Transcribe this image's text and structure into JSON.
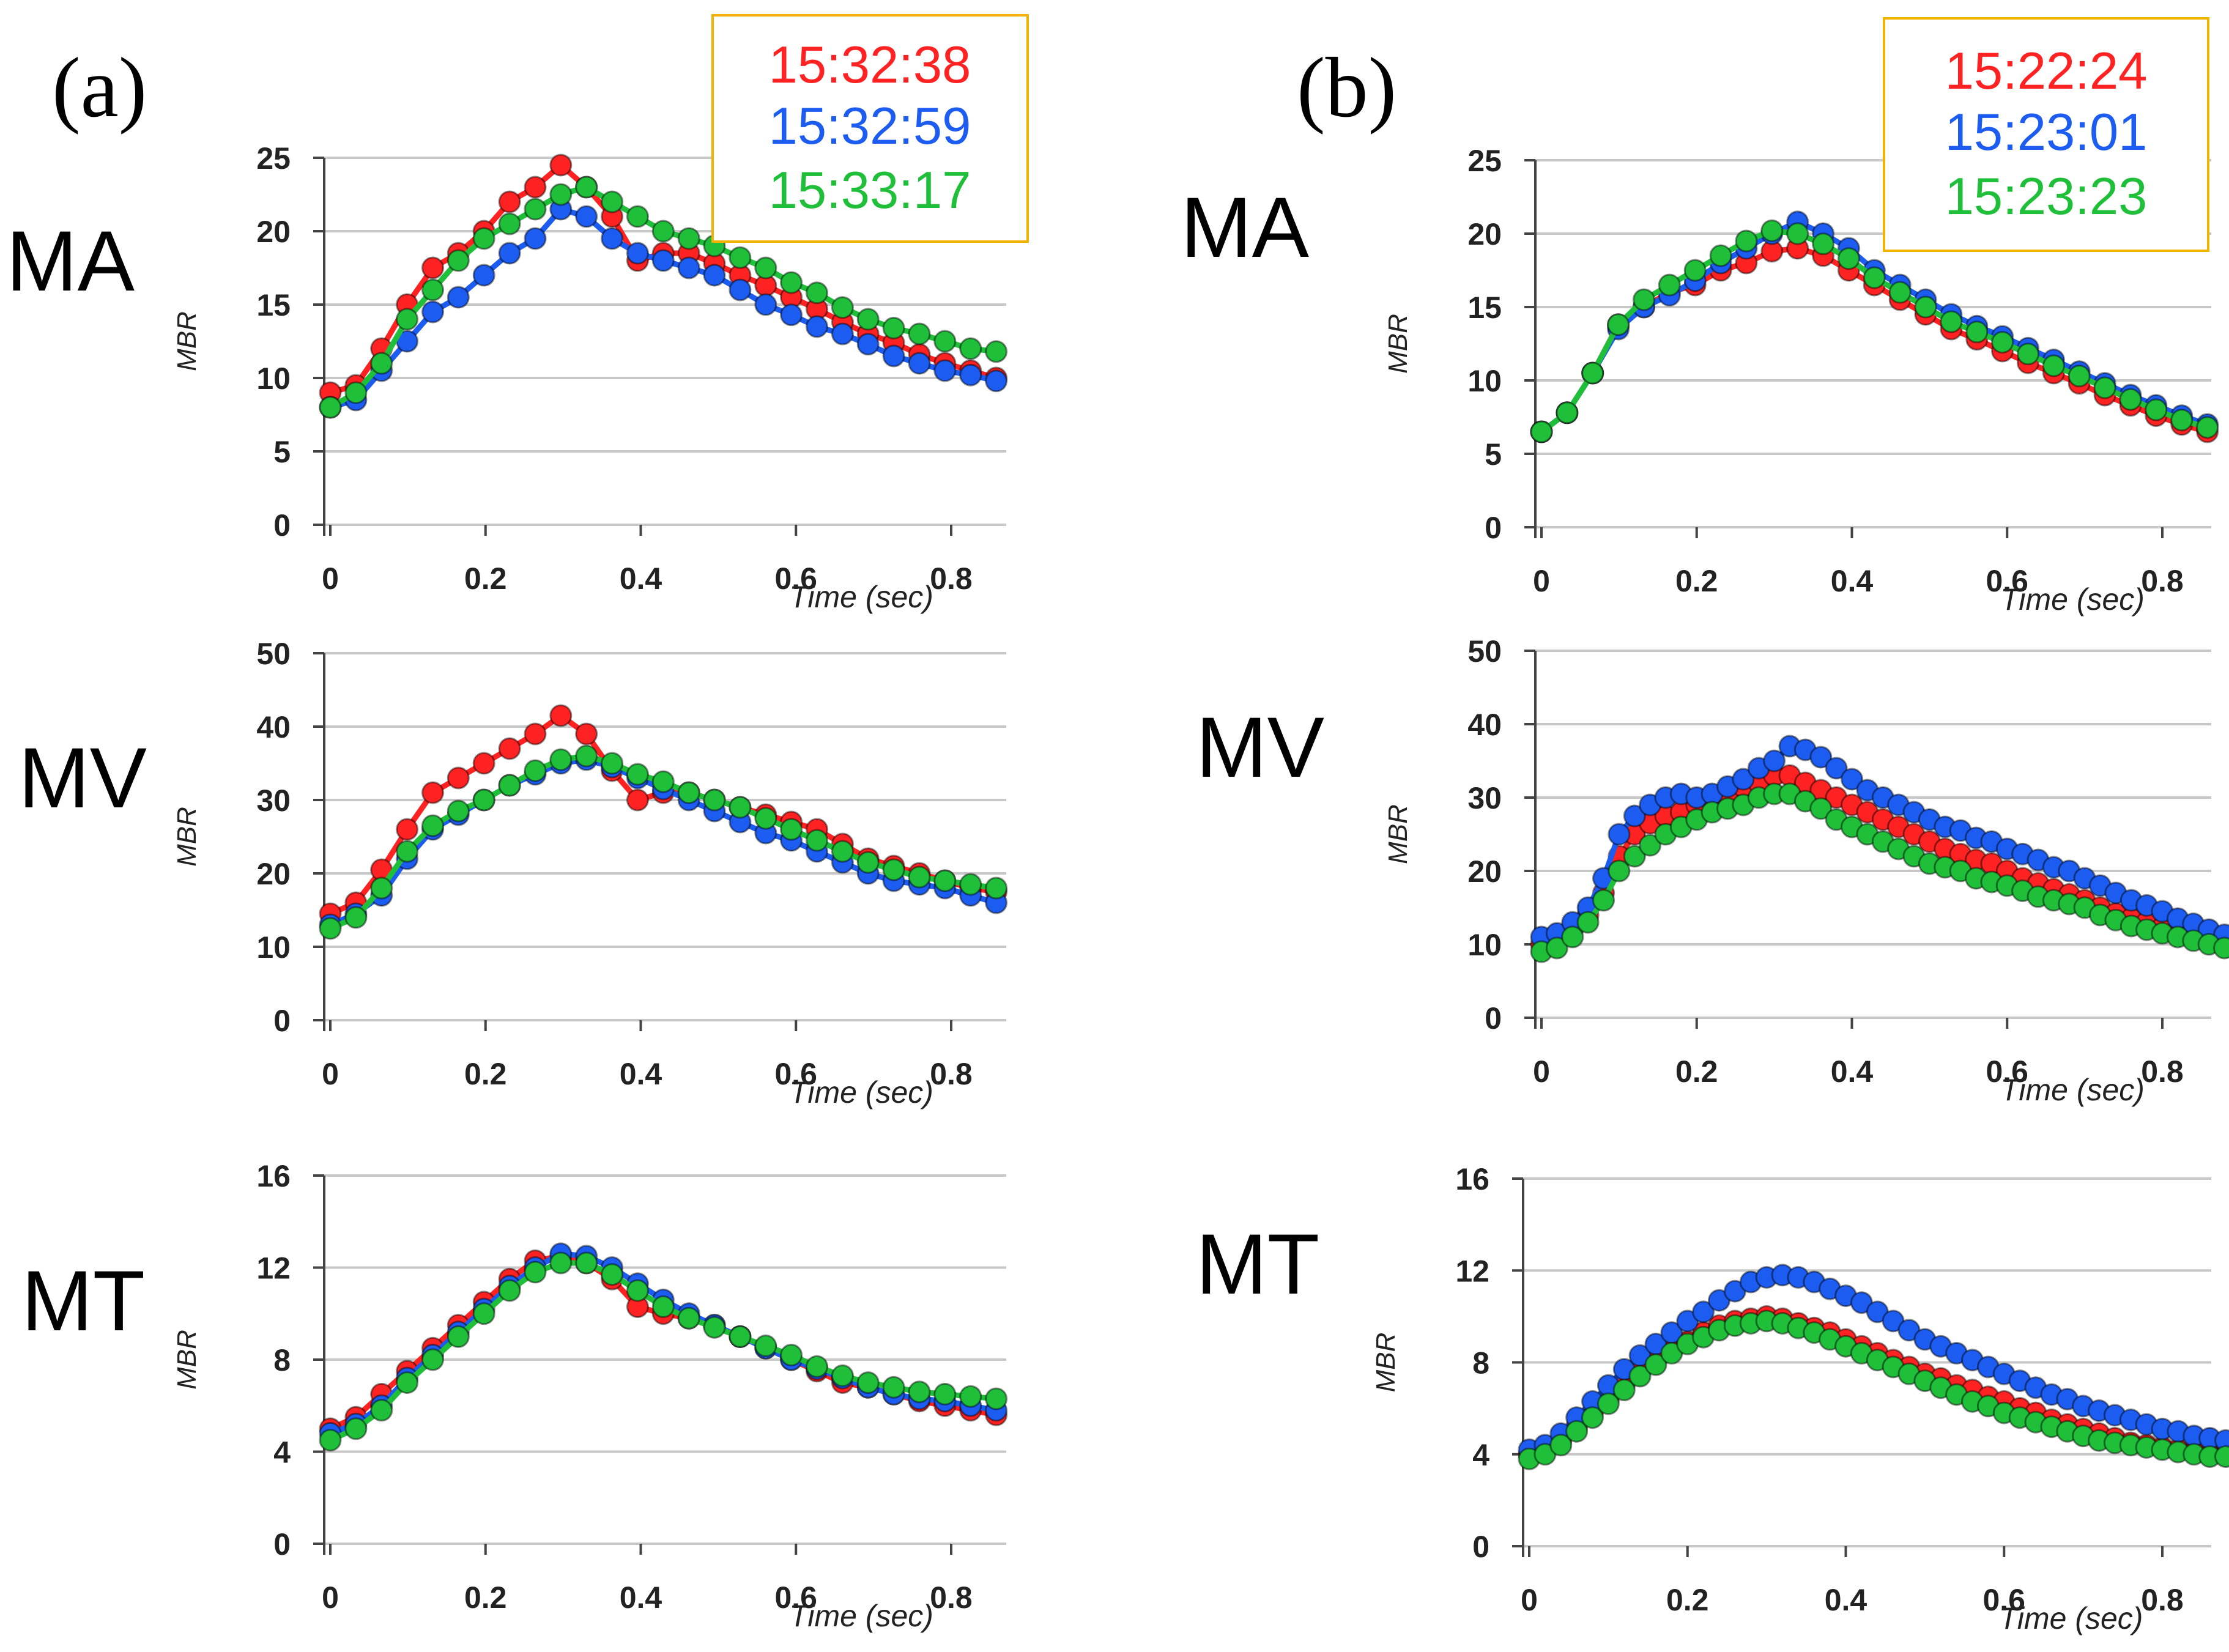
{
  "figure": {
    "panels": [
      {
        "letter": "(a)",
        "legend": [
          "15:32:38",
          "15:32:59",
          "15:33:17"
        ]
      },
      {
        "letter": "(b)",
        "legend": [
          "15:22:24",
          "15:23:01",
          "15:23:23"
        ]
      }
    ],
    "rows": [
      "MA",
      "MV",
      "MT"
    ],
    "colors": {
      "red": "#ff2222",
      "blue": "#1d5cf0",
      "green": "#1fbf3a",
      "legend_border": "#f0b400",
      "grid": "#c8c8c8"
    }
  },
  "chart_data": [
    {
      "type": "line",
      "panel": "(a)",
      "row": "MA",
      "xlabel": "Time (sec)",
      "ylabel": "MBR",
      "xlim": [
        0,
        0.88
      ],
      "ylim": [
        0,
        25
      ],
      "xticks": [
        "0",
        "0.2",
        "0.4",
        "0.6",
        "0.8"
      ],
      "yticks": [
        "0",
        "5",
        "10",
        "15",
        "20",
        "25"
      ],
      "x": [
        0.0,
        0.033,
        0.066,
        0.099,
        0.132,
        0.165,
        0.198,
        0.231,
        0.264,
        0.297,
        0.33,
        0.363,
        0.396,
        0.429,
        0.462,
        0.495,
        0.528,
        0.561,
        0.594,
        0.627,
        0.66,
        0.693,
        0.726,
        0.759,
        0.792,
        0.825,
        0.858
      ],
      "series": [
        {
          "name": "15:32:38",
          "color": "#ff2222",
          "values": [
            9.0,
            9.5,
            12.0,
            15.0,
            17.5,
            18.5,
            20.0,
            22.0,
            23.0,
            24.5,
            23.0,
            21.0,
            18.0,
            18.5,
            18.5,
            17.8,
            17.0,
            16.3,
            15.5,
            14.7,
            13.8,
            13.0,
            12.4,
            11.6,
            11.0,
            10.5,
            10.0
          ]
        },
        {
          "name": "15:32:59",
          "color": "#1d5cf0",
          "values": [
            8.0,
            8.5,
            10.5,
            12.5,
            14.5,
            15.5,
            17.0,
            18.5,
            19.5,
            21.5,
            21.0,
            19.5,
            18.5,
            18.0,
            17.5,
            17.0,
            16.0,
            15.0,
            14.3,
            13.5,
            13.0,
            12.3,
            11.5,
            11.0,
            10.5,
            10.2,
            9.8
          ]
        },
        {
          "name": "15:33:17",
          "color": "#1fbf3a",
          "values": [
            8.0,
            9.0,
            11.0,
            14.0,
            16.0,
            18.0,
            19.5,
            20.5,
            21.5,
            22.5,
            23.0,
            22.0,
            21.0,
            20.0,
            19.5,
            19.0,
            18.2,
            17.5,
            16.5,
            15.8,
            14.8,
            14.0,
            13.4,
            13.0,
            12.5,
            12.0,
            11.8
          ]
        }
      ]
    },
    {
      "type": "line",
      "panel": "(a)",
      "row": "MV",
      "xlabel": "Time (sec)",
      "ylabel": "MBR",
      "xlim": [
        0,
        0.88
      ],
      "ylim": [
        0,
        50
      ],
      "xticks": [
        "0",
        "0.2",
        "0.4",
        "0.6",
        "0.8"
      ],
      "yticks": [
        "0",
        "10",
        "20",
        "30",
        "40",
        "50"
      ],
      "x": [
        0.0,
        0.033,
        0.066,
        0.099,
        0.132,
        0.165,
        0.198,
        0.231,
        0.264,
        0.297,
        0.33,
        0.363,
        0.396,
        0.429,
        0.462,
        0.495,
        0.528,
        0.561,
        0.594,
        0.627,
        0.66,
        0.693,
        0.726,
        0.759,
        0.792,
        0.825,
        0.858
      ],
      "series": [
        {
          "name": "15:32:38",
          "color": "#ff2222",
          "values": [
            14.5,
            16.0,
            20.5,
            26.0,
            31.0,
            33.0,
            35.0,
            37.0,
            39.0,
            41.5,
            39.0,
            34.0,
            30.0,
            31.0,
            31.0,
            30.0,
            29.0,
            28.0,
            27.0,
            26.0,
            24.0,
            22.0,
            21.0,
            20.0,
            19.0,
            18.0,
            17.5
          ]
        },
        {
          "name": "15:32:59",
          "color": "#1d5cf0",
          "values": [
            13.0,
            14.5,
            17.0,
            22.0,
            26.0,
            28.0,
            30.0,
            32.0,
            33.5,
            35.0,
            35.5,
            34.5,
            33.0,
            31.5,
            30.0,
            28.5,
            27.0,
            25.5,
            24.5,
            23.0,
            21.5,
            20.0,
            19.0,
            18.5,
            18.0,
            17.0,
            16.0
          ]
        },
        {
          "name": "15:33:17",
          "color": "#1fbf3a",
          "values": [
            12.5,
            14.0,
            18.0,
            23.0,
            26.5,
            28.5,
            30.0,
            32.0,
            34.0,
            35.5,
            36.0,
            35.0,
            33.5,
            32.5,
            31.0,
            30.0,
            29.0,
            27.5,
            26.0,
            24.5,
            23.0,
            21.5,
            20.5,
            19.5,
            19.0,
            18.5,
            18.0
          ]
        }
      ]
    },
    {
      "type": "line",
      "panel": "(a)",
      "row": "MT",
      "xlabel": "Time (sec)",
      "ylabel": "MBR",
      "xlim": [
        0,
        0.88
      ],
      "ylim": [
        0,
        16
      ],
      "xticks": [
        "0",
        "0.2",
        "0.4",
        "0.6",
        "0.8"
      ],
      "yticks": [
        "0",
        "4",
        "8",
        "12",
        "16"
      ],
      "x": [
        0.0,
        0.033,
        0.066,
        0.099,
        0.132,
        0.165,
        0.198,
        0.231,
        0.264,
        0.297,
        0.33,
        0.363,
        0.396,
        0.429,
        0.462,
        0.495,
        0.528,
        0.561,
        0.594,
        0.627,
        0.66,
        0.693,
        0.726,
        0.759,
        0.792,
        0.825,
        0.858
      ],
      "series": [
        {
          "name": "15:32:38",
          "color": "#ff2222",
          "values": [
            5.0,
            5.5,
            6.5,
            7.5,
            8.5,
            9.5,
            10.5,
            11.5,
            12.3,
            12.5,
            12.2,
            11.5,
            10.3,
            10.0,
            9.8,
            9.5,
            9.0,
            8.5,
            8.0,
            7.5,
            7.0,
            6.8,
            6.5,
            6.2,
            6.0,
            5.8,
            5.6
          ]
        },
        {
          "name": "15:32:59",
          "color": "#1d5cf0",
          "values": [
            4.8,
            5.2,
            6.0,
            7.2,
            8.2,
            9.2,
            10.2,
            11.2,
            12.0,
            12.6,
            12.5,
            12.0,
            11.3,
            10.6,
            10.0,
            9.5,
            9.0,
            8.5,
            8.0,
            7.6,
            7.2,
            6.8,
            6.5,
            6.3,
            6.2,
            6.0,
            5.8
          ]
        },
        {
          "name": "15:33:17",
          "color": "#1fbf3a",
          "values": [
            4.5,
            5.0,
            5.8,
            7.0,
            8.0,
            9.0,
            10.0,
            11.0,
            11.8,
            12.2,
            12.2,
            11.7,
            11.0,
            10.3,
            9.8,
            9.4,
            9.0,
            8.6,
            8.2,
            7.7,
            7.3,
            7.0,
            6.8,
            6.6,
            6.5,
            6.4,
            6.3
          ]
        }
      ]
    },
    {
      "type": "line",
      "panel": "(b)",
      "row": "MA",
      "xlabel": "Time (sec)",
      "ylabel": "MBR",
      "xlim": [
        0,
        0.88
      ],
      "ylim": [
        0,
        25
      ],
      "xticks": [
        "0",
        "0.2",
        "0.4",
        "0.6",
        "0.8"
      ],
      "yticks": [
        "0",
        "5",
        "10",
        "15",
        "20",
        "25"
      ],
      "x": [
        0.0,
        0.033,
        0.066,
        0.099,
        0.132,
        0.165,
        0.198,
        0.231,
        0.264,
        0.297,
        0.33,
        0.363,
        0.396,
        0.429,
        0.462,
        0.495,
        0.528,
        0.561,
        0.594,
        0.627,
        0.66,
        0.693,
        0.726,
        0.759,
        0.792,
        0.825,
        0.858
      ],
      "series": [
        {
          "name": "15:22:24",
          "color": "#ff2222",
          "values": [
            6.5,
            7.8,
            10.5,
            13.8,
            15.0,
            16.0,
            16.5,
            17.5,
            18.0,
            18.8,
            19.0,
            18.5,
            17.5,
            16.5,
            15.5,
            14.5,
            13.5,
            12.8,
            12.0,
            11.2,
            10.5,
            9.8,
            9.0,
            8.3,
            7.6,
            7.0,
            6.5
          ]
        },
        {
          "name": "15:23:01",
          "color": "#1d5cf0",
          "values": [
            6.5,
            7.8,
            10.5,
            13.5,
            15.0,
            15.8,
            16.8,
            18.0,
            19.0,
            20.0,
            20.8,
            20.0,
            19.0,
            17.5,
            16.5,
            15.5,
            14.5,
            13.7,
            13.0,
            12.2,
            11.4,
            10.6,
            9.8,
            9.0,
            8.3,
            7.6,
            7.0
          ]
        },
        {
          "name": "15:23:23",
          "color": "#1fbf3a",
          "values": [
            6.5,
            7.8,
            10.5,
            13.8,
            15.5,
            16.5,
            17.5,
            18.5,
            19.5,
            20.2,
            20.0,
            19.3,
            18.3,
            17.0,
            16.0,
            15.0,
            14.0,
            13.3,
            12.6,
            11.8,
            11.0,
            10.3,
            9.5,
            8.7,
            8.0,
            7.3,
            6.8
          ]
        }
      ]
    },
    {
      "type": "line",
      "panel": "(b)",
      "row": "MV",
      "xlabel": "Time (sec)",
      "ylabel": "MBR",
      "xlim": [
        0,
        0.88
      ],
      "ylim": [
        0,
        50
      ],
      "xticks": [
        "0",
        "0.2",
        "0.4",
        "0.6",
        "0.8"
      ],
      "yticks": [
        "0",
        "10",
        "20",
        "30",
        "40",
        "50"
      ],
      "x": [
        0.0,
        0.02,
        0.04,
        0.06,
        0.08,
        0.1,
        0.12,
        0.14,
        0.16,
        0.18,
        0.2,
        0.22,
        0.24,
        0.26,
        0.28,
        0.3,
        0.32,
        0.34,
        0.36,
        0.38,
        0.4,
        0.42,
        0.44,
        0.46,
        0.48,
        0.5,
        0.52,
        0.54,
        0.56,
        0.58,
        0.6,
        0.62,
        0.64,
        0.66,
        0.68,
        0.7,
        0.72,
        0.74,
        0.76,
        0.78,
        0.8,
        0.82,
        0.84,
        0.86,
        0.88
      ],
      "series": [
        {
          "name": "15:22:24",
          "color": "#ff2222",
          "values": [
            10.0,
            10.5,
            12.0,
            14.0,
            17.0,
            22.0,
            25.0,
            26.5,
            27.5,
            28.0,
            29.0,
            30.0,
            30.5,
            31.5,
            32.0,
            33.0,
            33.0,
            32.0,
            31.0,
            30.0,
            29.0,
            28.0,
            27.0,
            26.0,
            25.0,
            24.0,
            23.0,
            22.3,
            21.5,
            21.0,
            20.0,
            19.0,
            18.3,
            17.5,
            16.8,
            16.0,
            15.0,
            14.2,
            13.5,
            13.0,
            12.3,
            11.8,
            11.3,
            10.8,
            10.3
          ]
        },
        {
          "name": "15:23:01",
          "color": "#1d5cf0",
          "values": [
            11.0,
            11.5,
            13.0,
            15.0,
            19.0,
            25.0,
            27.5,
            29.0,
            30.0,
            30.5,
            30.0,
            30.5,
            31.5,
            32.5,
            34.0,
            35.0,
            37.0,
            36.5,
            35.5,
            34.0,
            32.5,
            31.0,
            30.0,
            29.0,
            28.0,
            27.0,
            26.0,
            25.5,
            24.5,
            24.0,
            23.0,
            22.3,
            21.5,
            20.5,
            20.0,
            19.0,
            18.0,
            17.0,
            16.0,
            15.3,
            14.5,
            13.5,
            12.8,
            12.0,
            11.3
          ]
        },
        {
          "name": "15:23:23",
          "color": "#1fbf3a",
          "values": [
            9.0,
            9.5,
            11.0,
            13.0,
            16.0,
            20.0,
            22.0,
            23.5,
            25.0,
            26.0,
            27.0,
            28.0,
            28.5,
            29.0,
            30.0,
            30.5,
            30.5,
            29.5,
            28.5,
            27.0,
            26.0,
            25.0,
            24.0,
            23.0,
            22.0,
            21.0,
            20.5,
            20.0,
            19.0,
            18.5,
            18.0,
            17.3,
            16.5,
            16.0,
            15.5,
            15.0,
            14.0,
            13.3,
            12.5,
            12.0,
            11.5,
            11.0,
            10.5,
            10.0,
            9.5
          ]
        }
      ]
    },
    {
      "type": "line",
      "panel": "(b)",
      "row": "MT",
      "xlabel": "Time (sec)",
      "ylabel": "MBR",
      "xlim": [
        0,
        0.88
      ],
      "ylim": [
        0,
        16
      ],
      "xticks": [
        "0",
        "0.2",
        "0.4",
        "0.6",
        "0.8"
      ],
      "yticks": [
        "0",
        "4",
        "8",
        "12",
        "16"
      ],
      "x": [
        0.0,
        0.02,
        0.04,
        0.06,
        0.08,
        0.1,
        0.12,
        0.14,
        0.16,
        0.18,
        0.2,
        0.22,
        0.24,
        0.26,
        0.28,
        0.3,
        0.32,
        0.34,
        0.36,
        0.38,
        0.4,
        0.42,
        0.44,
        0.46,
        0.48,
        0.5,
        0.52,
        0.54,
        0.56,
        0.58,
        0.6,
        0.62,
        0.64,
        0.66,
        0.68,
        0.7,
        0.72,
        0.74,
        0.76,
        0.78,
        0.8,
        0.82,
        0.84,
        0.86,
        0.88
      ],
      "series": [
        {
          "name": "15:22:24",
          "color": "#ff2222",
          "values": [
            4.0,
            4.2,
            4.6,
            5.2,
            5.8,
            6.4,
            7.0,
            7.6,
            8.1,
            8.5,
            8.9,
            9.3,
            9.6,
            9.8,
            9.9,
            10.0,
            9.9,
            9.7,
            9.5,
            9.3,
            9.0,
            8.7,
            8.4,
            8.1,
            7.8,
            7.5,
            7.3,
            7.0,
            6.8,
            6.5,
            6.3,
            6.0,
            5.8,
            5.5,
            5.3,
            5.1,
            4.9,
            4.7,
            4.5,
            4.4,
            4.3,
            4.2,
            4.1,
            4.0,
            4.0
          ]
        },
        {
          "name": "15:23:01",
          "color": "#1d5cf0",
          "values": [
            4.2,
            4.4,
            4.9,
            5.6,
            6.3,
            7.0,
            7.7,
            8.3,
            8.8,
            9.3,
            9.8,
            10.2,
            10.7,
            11.1,
            11.5,
            11.7,
            11.8,
            11.7,
            11.5,
            11.2,
            10.9,
            10.6,
            10.2,
            9.8,
            9.4,
            9.0,
            8.7,
            8.4,
            8.1,
            7.8,
            7.5,
            7.2,
            6.9,
            6.6,
            6.4,
            6.1,
            5.9,
            5.7,
            5.5,
            5.3,
            5.1,
            5.0,
            4.8,
            4.7,
            4.6
          ]
        },
        {
          "name": "15:23:23",
          "color": "#1fbf3a",
          "values": [
            3.8,
            4.0,
            4.4,
            5.0,
            5.6,
            6.2,
            6.8,
            7.4,
            7.9,
            8.4,
            8.8,
            9.1,
            9.4,
            9.6,
            9.7,
            9.8,
            9.7,
            9.5,
            9.3,
            9.0,
            8.7,
            8.4,
            8.1,
            7.8,
            7.5,
            7.2,
            6.9,
            6.6,
            6.3,
            6.1,
            5.8,
            5.6,
            5.4,
            5.2,
            5.0,
            4.8,
            4.6,
            4.5,
            4.4,
            4.3,
            4.2,
            4.1,
            4.0,
            3.9,
            3.9
          ]
        }
      ]
    }
  ]
}
